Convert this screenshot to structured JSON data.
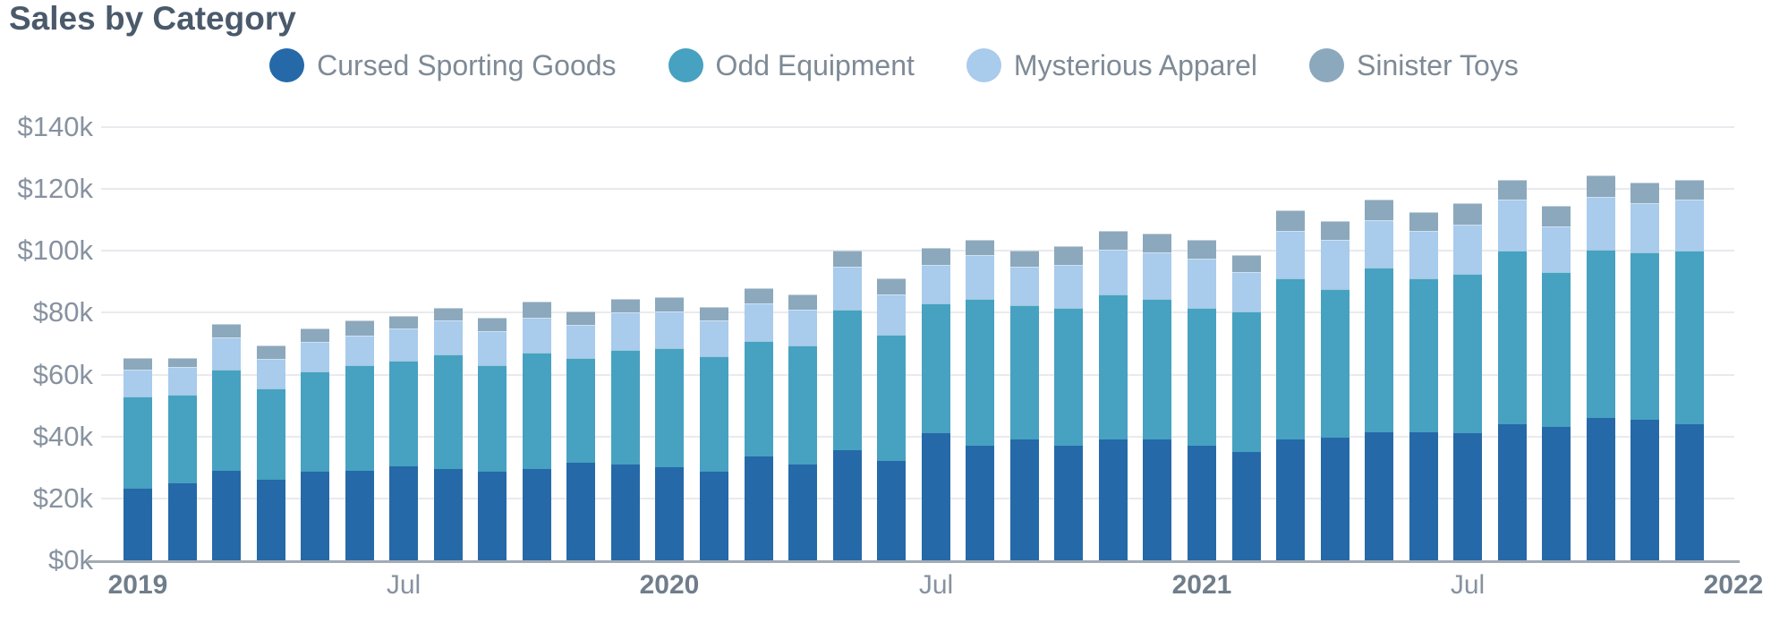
{
  "title": "Sales by Category",
  "colors": {
    "cursed_sporting_goods": "#2569a8",
    "odd_equipment": "#47a1c0",
    "mysterious_apparel": "#a9cbec",
    "sinister_toys": "#8ca8bc",
    "gridline": "#e9eaee",
    "axis_line": "#a2abb5",
    "title_text": "#4a5a6b",
    "tick_text": "#8792a0",
    "legend_text": "#7e8a96"
  },
  "legend": {
    "items": [
      {
        "label": "Cursed Sporting Goods",
        "color": "#2569a8"
      },
      {
        "label": "Odd Equipment",
        "color": "#47a1c0"
      },
      {
        "label": "Mysterious Apparel",
        "color": "#a9cbec"
      },
      {
        "label": "Sinister Toys",
        "color": "#8ca8bc"
      }
    ]
  },
  "chart_data": {
    "type": "bar",
    "stacked": true,
    "unit": "USD thousands per month",
    "x": [
      "Jan 2019",
      "Feb 2019",
      "Mar 2019",
      "Apr 2019",
      "May 2019",
      "Jun 2019",
      "Jul 2019",
      "Aug 2019",
      "Sep 2019",
      "Oct 2019",
      "Nov 2019",
      "Dec 2019",
      "Jan 2020",
      "Feb 2020",
      "Mar 2020",
      "Apr 2020",
      "May 2020",
      "Jun 2020",
      "Jul 2020",
      "Aug 2020",
      "Sep 2020",
      "Oct 2020",
      "Nov 2020",
      "Dec 2020",
      "Jan 2021",
      "Feb 2021",
      "Mar 2021",
      "Apr 2021",
      "May 2021",
      "Jun 2021",
      "Jul 2021",
      "Aug 2021",
      "Sep 2021",
      "Oct 2021",
      "Nov 2021",
      "Dec 2021"
    ],
    "series": [
      {
        "name": "Cursed Sporting Goods",
        "color": "#2569a8",
        "values": [
          23,
          25,
          29,
          26,
          28.5,
          29,
          30.5,
          29.5,
          28.5,
          29.5,
          31.5,
          31,
          30,
          28.5,
          33.5,
          31,
          35.5,
          32,
          41,
          37,
          39,
          37,
          39,
          39,
          37,
          35,
          39,
          39.5,
          41.5,
          41.5,
          41,
          44,
          43,
          46,
          45.5,
          44
        ]
      },
      {
        "name": "Odd Equipment",
        "color": "#47a1c0",
        "values": [
          30,
          28.5,
          32.5,
          29.5,
          32.5,
          34,
          34,
          37,
          34.5,
          37.5,
          34,
          37,
          38.5,
          37.5,
          37.5,
          38.5,
          45.5,
          41,
          42,
          47.5,
          43.5,
          44.5,
          47,
          45.5,
          44.5,
          45.5,
          52,
          48,
          53,
          49.5,
          51.5,
          56,
          50,
          54.5,
          54,
          56
        ]
      },
      {
        "name": "Mysterious Apparel",
        "color": "#a9cbec",
        "values": [
          8.5,
          9,
          10.5,
          9.5,
          9.5,
          9.5,
          10.5,
          11,
          11,
          11.5,
          10.5,
          12,
          12,
          11.5,
          12,
          11.5,
          14,
          13,
          12.5,
          14,
          12.5,
          14,
          14.5,
          15,
          16,
          12.5,
          15.5,
          16,
          15.5,
          15.5,
          16,
          16.5,
          15,
          17,
          16,
          16.5
        ]
      },
      {
        "name": "Sinister Toys",
        "color": "#8ca8bc",
        "values": [
          4,
          3,
          4.5,
          4.5,
          4.5,
          5,
          4,
          4,
          4.5,
          5,
          4.5,
          4.5,
          4.5,
          4.5,
          5,
          5,
          5,
          5,
          5.5,
          5,
          5,
          6,
          6,
          6,
          6,
          5.5,
          6.5,
          6,
          6.5,
          6,
          7,
          6.5,
          6.5,
          7,
          6.5,
          6.5
        ]
      }
    ],
    "ylim": [
      0,
      140
    ],
    "y_tick_step": 20,
    "y_tick_labels": [
      "$0k",
      "$20k",
      "$40k",
      "$60k",
      "$80k",
      "$100k",
      "$120k",
      "$140k"
    ],
    "x_tick_labels": [
      {
        "bar_index": 0,
        "label": "2019",
        "bold": true
      },
      {
        "bar_index": 6,
        "label": "Jul",
        "bold": false
      },
      {
        "bar_index": 12,
        "label": "2020",
        "bold": true
      },
      {
        "bar_index": 18,
        "label": "Jul",
        "bold": false
      },
      {
        "bar_index": 24,
        "label": "2021",
        "bold": true
      },
      {
        "bar_index": 30,
        "label": "Jul",
        "bold": false
      },
      {
        "bar_index": 36,
        "label": "2022",
        "bold": true
      }
    ],
    "grid": "horizontal",
    "legend_position": "top-center"
  }
}
